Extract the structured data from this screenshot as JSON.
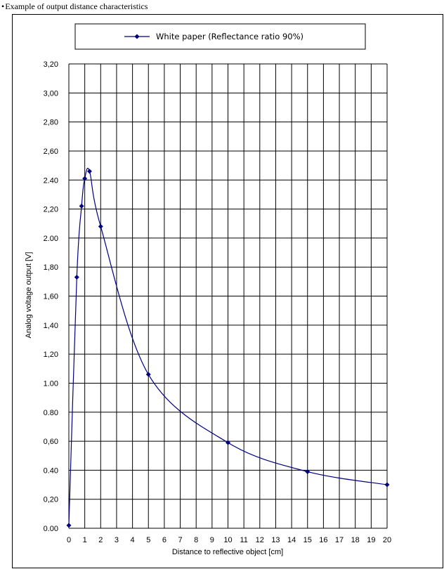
{
  "caption": {
    "bullet": "•",
    "text": "Example of output distance characteristics"
  },
  "colors": {
    "series": "#000080",
    "grid": "#000000",
    "background": "#ffffff"
  },
  "chart_data": {
    "type": "line",
    "title": "",
    "xlabel": "Distance to reflective object [cm]",
    "ylabel": "Analog voltage output [V]",
    "xlim": [
      0,
      20
    ],
    "ylim": [
      0,
      3.2
    ],
    "x_ticks": [
      "0",
      "1",
      "2",
      "3",
      "4",
      "5",
      "6",
      "7",
      "8",
      "9",
      "10",
      "11",
      "12",
      "13",
      "14",
      "15",
      "16",
      "17",
      "18",
      "19",
      "20"
    ],
    "y_ticks": [
      "0.00",
      "0,20",
      "0.40",
      "0,60",
      "0.80",
      "1.00",
      "1,20",
      "1,40",
      "1,60",
      "1,80",
      "2.00",
      "2,20",
      "2.40",
      "2,60",
      "2,80",
      "3,00",
      "3,20"
    ],
    "grid": true,
    "legend": "top",
    "series": [
      {
        "name": "White paper (Reflectance ratio 90%)",
        "marker": "diamond",
        "color": "#000080",
        "x": [
          0,
          0.5,
          0.8,
          1,
          1.3,
          2,
          5,
          10,
          15,
          20
        ],
        "y": [
          0.02,
          1.73,
          2.22,
          2.41,
          2.46,
          2.08,
          1.06,
          0.59,
          0.39,
          0.3
        ]
      }
    ]
  }
}
